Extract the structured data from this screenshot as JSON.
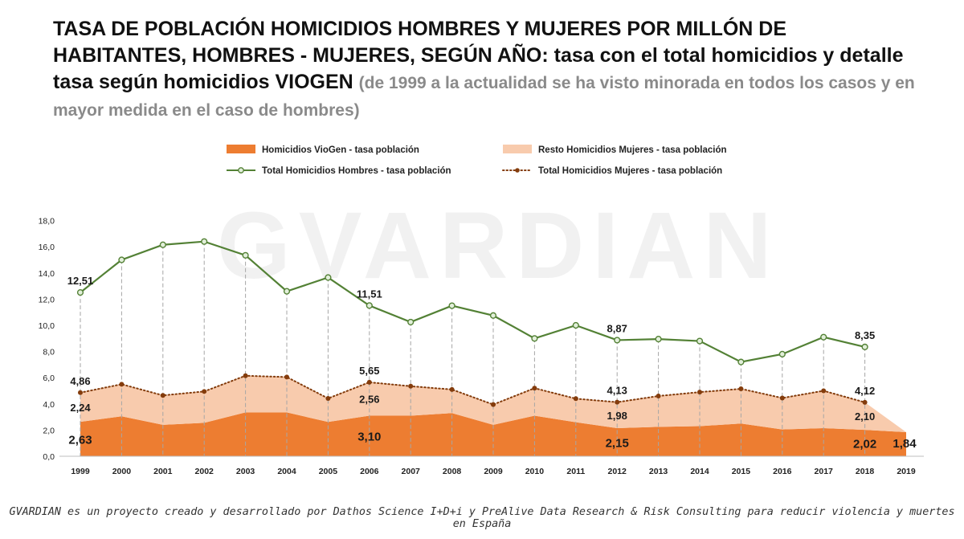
{
  "title": {
    "main": "TASA DE POBLACIÓN HOMICIDIOS HOMBRES Y MUJERES POR MILLÓN DE HABITANTES, HOMBRES - MUJERES, SEGÚN AÑO: tasa con el total homicidios y detalle tasa según homicidios VIOGEN",
    "subtitle": "(de 1999 a la actualidad se ha visto minorada en todos los casos y en mayor medida en el caso de hombres)"
  },
  "watermark": "GVARDIAN",
  "footer": "GVARDIAN es un proyecto creado y desarrollado por Dathos Science I+D+i y PreAlive Data Research & Risk Consulting para reducir violencia y muertes en España",
  "colors": {
    "viogen": "#ed7d31",
    "resto": "#f8cbad",
    "hombres": "#538135",
    "mujeres": "#843c0c",
    "grid_dashed": "#a6a6a6",
    "axis": "#bfbfbf"
  },
  "chart_data": {
    "type": "area",
    "x": [
      "1999",
      "2000",
      "2001",
      "2002",
      "2003",
      "2004",
      "2005",
      "2006",
      "2007",
      "2008",
      "2009",
      "2010",
      "2011",
      "2012",
      "2013",
      "2014",
      "2015",
      "2016",
      "2017",
      "2018",
      "2019"
    ],
    "ylim": [
      0,
      18
    ],
    "yticks": [
      "0,0",
      "2,0",
      "4,0",
      "6,0",
      "8,0",
      "10,0",
      "12,0",
      "14,0",
      "16,0",
      "18,0"
    ],
    "grid": "vertical dashed drop lines at each year",
    "legend_position": "top",
    "series": [
      {
        "name": "Homicidios VioGen - tasa población",
        "kind": "stacked-area",
        "values": [
          2.63,
          3.05,
          2.4,
          2.55,
          3.35,
          3.35,
          2.62,
          3.1,
          3.1,
          3.3,
          2.4,
          3.1,
          2.6,
          2.15,
          2.25,
          2.3,
          2.5,
          2.05,
          2.15,
          2.02,
          1.84
        ]
      },
      {
        "name": "Resto Homicidios Mujeres - tasa población",
        "kind": "stacked-area",
        "values": [
          2.24,
          2.45,
          2.25,
          2.4,
          2.8,
          2.7,
          1.8,
          2.56,
          2.25,
          1.8,
          1.55,
          2.1,
          1.8,
          1.98,
          2.35,
          2.6,
          2.65,
          2.4,
          2.85,
          2.1,
          null
        ]
      },
      {
        "name": "Total Homicidios Hombres - tasa población",
        "kind": "line-solid-markers",
        "values": [
          12.51,
          15.0,
          16.15,
          16.4,
          15.35,
          12.6,
          13.65,
          11.51,
          10.25,
          11.5,
          10.75,
          9.0,
          10.0,
          8.87,
          8.95,
          8.8,
          7.2,
          7.8,
          9.1,
          8.35,
          null
        ]
      },
      {
        "name": "Total Homicidios Mujeres - tasa población",
        "kind": "line-dotted-markers",
        "values": [
          4.86,
          5.5,
          4.65,
          4.95,
          6.15,
          6.05,
          4.42,
          5.65,
          5.35,
          5.1,
          3.95,
          5.2,
          4.4,
          4.13,
          4.6,
          4.9,
          5.15,
          4.45,
          5.0,
          4.12,
          null
        ]
      }
    ],
    "data_labels": [
      {
        "series": "Total Homicidios Hombres - tasa población",
        "x": "1999",
        "text": "12,51"
      },
      {
        "series": "Total Homicidios Hombres - tasa población",
        "x": "2006",
        "text": "11,51"
      },
      {
        "series": "Total Homicidios Hombres - tasa población",
        "x": "2012",
        "text": "8,87"
      },
      {
        "series": "Total Homicidios Hombres - tasa población",
        "x": "2018",
        "text": "8,35"
      },
      {
        "series": "Total Homicidios Mujeres - tasa población",
        "x": "1999",
        "text": "4,86"
      },
      {
        "series": "Total Homicidios Mujeres - tasa población",
        "x": "2006",
        "text": "5,65"
      },
      {
        "series": "Total Homicidios Mujeres - tasa población",
        "x": "2012",
        "text": "4,13"
      },
      {
        "series": "Total Homicidios Mujeres - tasa población",
        "x": "2018",
        "text": "4,12"
      },
      {
        "series": "Resto Homicidios Mujeres - tasa población",
        "x": "1999",
        "text": "2,24"
      },
      {
        "series": "Resto Homicidios Mujeres - tasa población",
        "x": "2006",
        "text": "2,56"
      },
      {
        "series": "Resto Homicidios Mujeres - tasa población",
        "x": "2012",
        "text": "1,98"
      },
      {
        "series": "Resto Homicidios Mujeres - tasa población",
        "x": "2018",
        "text": "2,10"
      },
      {
        "series": "Homicidios VioGen - tasa población",
        "x": "1999",
        "text": "2,63"
      },
      {
        "series": "Homicidios VioGen - tasa población",
        "x": "2006",
        "text": "3,10"
      },
      {
        "series": "Homicidios VioGen - tasa población",
        "x": "2012",
        "text": "2,15"
      },
      {
        "series": "Homicidios VioGen - tasa población",
        "x": "2018",
        "text": "2,02"
      },
      {
        "series": "Homicidios VioGen - tasa población",
        "x": "2019",
        "text": "1,84"
      }
    ]
  }
}
